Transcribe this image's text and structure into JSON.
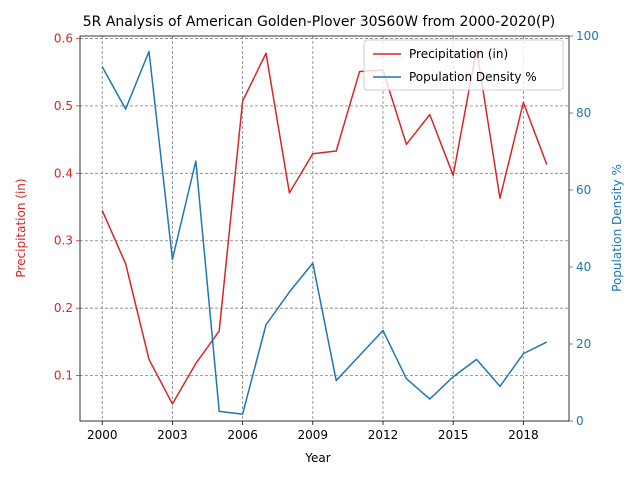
{
  "chart_data": {
    "type": "line",
    "title": "5R Analysis of American Golden-Plover 30S60W from 2000-2020(P)",
    "xlabel": "Year",
    "x": [
      2000,
      2001,
      2002,
      2003,
      2004,
      2005,
      2006,
      2007,
      2008,
      2009,
      2010,
      2011,
      2012,
      2013,
      2014,
      2015,
      2016,
      2017,
      2018,
      2019
    ],
    "xticks": [
      2000,
      2003,
      2006,
      2009,
      2012,
      2015,
      2018
    ],
    "xlim": [
      1999.05,
      2019.95
    ],
    "grid": true,
    "legend_position": "top-right",
    "series": [
      {
        "name": "Precipitation (in)",
        "axis": "left",
        "color": "#d62728",
        "values": [
          0.345,
          0.266,
          0.124,
          0.058,
          0.118,
          0.166,
          0.507,
          0.578,
          0.371,
          0.429,
          0.433,
          0.551,
          0.553,
          0.443,
          0.487,
          0.397,
          0.584,
          0.363,
          0.505,
          0.413
        ]
      },
      {
        "name": "Population Density %",
        "axis": "right",
        "color": "#1f77b4",
        "values": [
          92.0,
          81.0,
          96.0,
          42.0,
          67.5,
          2.5,
          1.8,
          25.0,
          33.5,
          41.0,
          10.5,
          17.0,
          23.5,
          11.0,
          5.7,
          11.5,
          16.0,
          9.0,
          17.5,
          20.5
        ]
      }
    ],
    "y_left": {
      "label": "Precipitation (in)",
      "ylim": [
        0.0327,
        0.6036
      ],
      "ticks": [
        0.1,
        0.2,
        0.3,
        0.4,
        0.5,
        0.6
      ],
      "tick_labels": [
        "0.1",
        "0.2",
        "0.3",
        "0.4",
        "0.5",
        "0.6"
      ],
      "color": "#d62728"
    },
    "y_right": {
      "label": "Population Density %",
      "ylim": [
        0,
        100
      ],
      "ticks": [
        0,
        20,
        40,
        60,
        80,
        100
      ],
      "tick_labels": [
        "0",
        "20",
        "40",
        "60",
        "80",
        "100"
      ],
      "color": "#1f77b4"
    }
  }
}
